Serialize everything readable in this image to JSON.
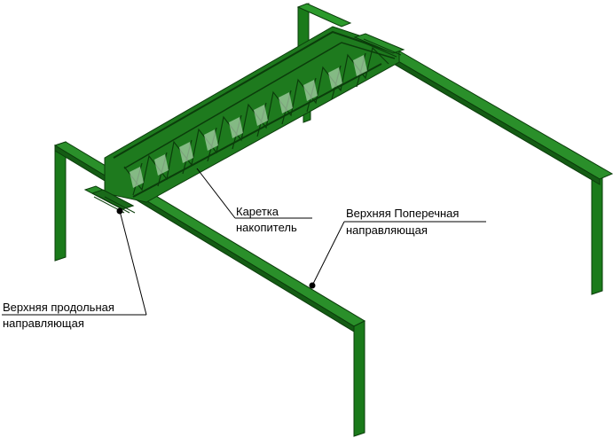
{
  "callouts": {
    "carriage": {
      "line1": "Каретка",
      "line2": "накопитель"
    },
    "upper_transverse_guide": {
      "line1": "Верхняя Поперечная",
      "line2": "направляющая"
    },
    "upper_longitudinal_guide": {
      "line1": "Верхняя продольная",
      "line2": "направляющая"
    }
  },
  "colors": {
    "frame": "#1f7a1f",
    "frame_dark": "#0b3d0b",
    "truss": "#1c6e1c",
    "background": "#ffffff",
    "leader": "#000000"
  }
}
